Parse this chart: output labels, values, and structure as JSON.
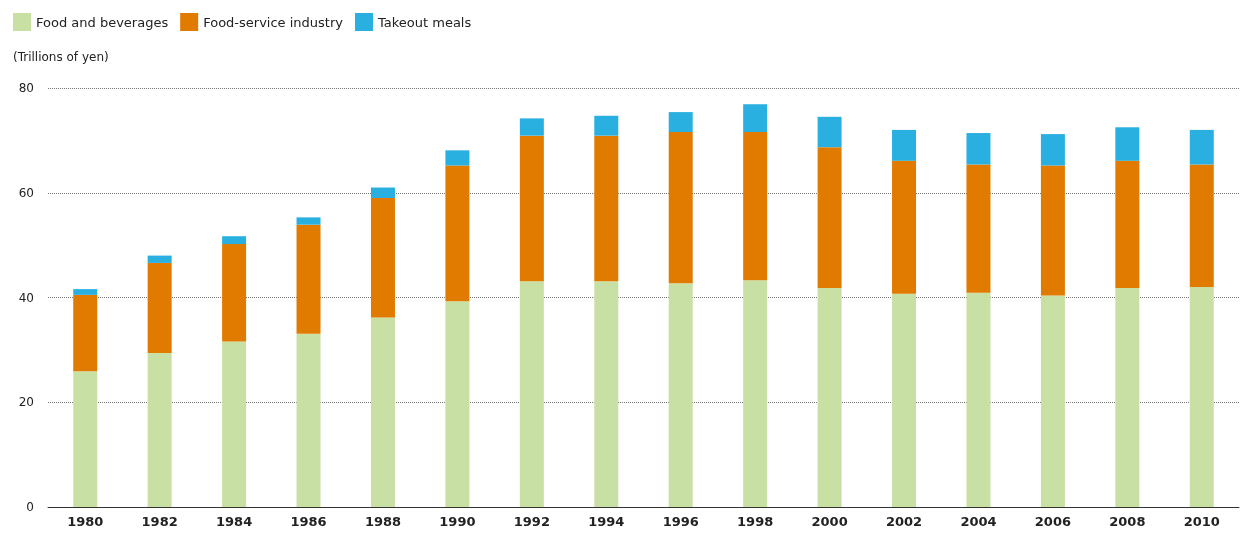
{
  "chart_data": {
    "type": "bar",
    "ylabel": "(Trillions of yen)",
    "categories": [
      "1980",
      "1982",
      "1984",
      "1986",
      "1988",
      "1990",
      "1992",
      "1994",
      "1996",
      "1998",
      "2000",
      "2002",
      "2004",
      "2006",
      "2008",
      "2010"
    ],
    "series": [
      {
        "name": "Food and beverages",
        "color": "#c8e0a4",
        "values": [
          25.9,
          29.4,
          31.6,
          33.1,
          36.2,
          39.3,
          43.1,
          43.1,
          42.7,
          43.3,
          41.8,
          40.7,
          40.9,
          40.4,
          41.8,
          42.0
        ]
      },
      {
        "name": "Food-service industry",
        "color": "#e07b00",
        "values": [
          14.6,
          17.2,
          18.6,
          20.8,
          22.8,
          25.9,
          27.8,
          27.8,
          28.9,
          28.3,
          26.9,
          25.4,
          24.5,
          24.8,
          24.3,
          23.4
        ]
      },
      {
        "name": "Takeout meals",
        "color": "#2ab0e0",
        "values": [
          1.1,
          1.4,
          1.5,
          1.4,
          2.0,
          2.9,
          3.3,
          3.8,
          3.8,
          5.3,
          5.8,
          5.9,
          6.0,
          6.0,
          6.4,
          6.6
        ]
      }
    ],
    "stacked": true,
    "ylim": [
      0,
      80
    ],
    "yticks": [
      0,
      20,
      40,
      60,
      80
    ],
    "grid": "y",
    "legend": "top left"
  }
}
